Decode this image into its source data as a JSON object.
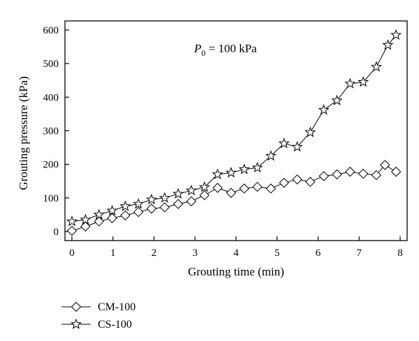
{
  "chart_data": {
    "type": "line",
    "title": "",
    "xlabel": "Grouting time (min)",
    "ylabel": "Grouting pressure (kPa)",
    "xlim": [
      0,
      8
    ],
    "ylim": [
      0,
      600
    ],
    "xticks": [
      0,
      1,
      2,
      3,
      4,
      5,
      6,
      7,
      8
    ],
    "yticks": [
      0,
      100,
      200,
      300,
      400,
      500,
      600
    ],
    "annotation": {
      "italic": "P",
      "sub": "0",
      "rest": " = 100 kPa"
    },
    "legend_position": "bottom-left (below plot)",
    "grid": false,
    "series": [
      {
        "name": "CM-100",
        "marker": "diamond",
        "x": [
          0,
          0.33,
          0.66,
          0.98,
          1.3,
          1.62,
          1.94,
          2.26,
          2.59,
          2.91,
          3.23,
          3.55,
          3.88,
          4.2,
          4.52,
          4.85,
          5.17,
          5.49,
          5.81,
          6.14,
          6.46,
          6.78,
          7.1,
          7.42,
          7.63,
          7.9
        ],
        "values": [
          2,
          15,
          30,
          40,
          48,
          58,
          68,
          72,
          82,
          90,
          108,
          130,
          115,
          128,
          133,
          128,
          145,
          155,
          148,
          165,
          170,
          178,
          172,
          168,
          198,
          178
        ]
      },
      {
        "name": "CS-100",
        "marker": "star",
        "x": [
          0,
          0.33,
          0.66,
          0.98,
          1.3,
          1.62,
          1.94,
          2.26,
          2.59,
          2.91,
          3.23,
          3.55,
          3.88,
          4.2,
          4.52,
          4.85,
          5.17,
          5.49,
          5.81,
          6.14,
          6.46,
          6.78,
          7.1,
          7.42,
          7.7,
          7.9
        ],
        "values": [
          30,
          35,
          50,
          62,
          75,
          82,
          95,
          100,
          112,
          122,
          132,
          170,
          175,
          185,
          190,
          225,
          262,
          252,
          295,
          362,
          390,
          440,
          445,
          490,
          555,
          585
        ]
      }
    ]
  }
}
